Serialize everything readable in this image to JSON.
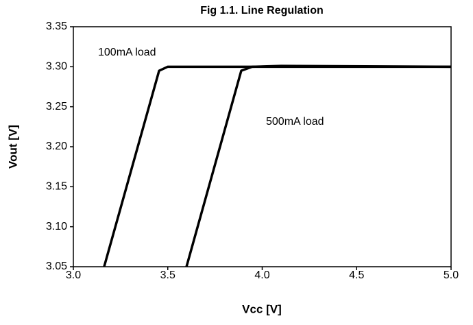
{
  "chart_data": {
    "type": "line",
    "title": "Fig 1.1. Line Regulation",
    "x_label": "Vcc [V]",
    "y_label": "Vout [V]",
    "annotations": [
      "100mA load",
      "500mA load"
    ],
    "series": [
      {
        "name": "100mA load",
        "color": "#000000",
        "x": [
          3.163,
          3.454,
          3.5,
          5.0
        ],
        "values": [
          3.05,
          3.295,
          3.3,
          3.3
        ]
      },
      {
        "name": "500mA load",
        "color": "#000000",
        "x": [
          3.599,
          3.889,
          3.947,
          4.1,
          5.0
        ],
        "values": [
          3.05,
          3.295,
          3.3,
          3.301,
          3.3
        ]
      }
    ],
    "xlim": [
      3.0,
      5.0
    ],
    "xticks": [
      {
        "value": 3.0,
        "label": "3.0"
      },
      3.5,
      {
        "value": 4.0,
        "label": "4.0"
      },
      4.5,
      {
        "value": 5.0,
        "label": "5.0"
      }
    ],
    "ylim": [
      3.05,
      3.35
    ],
    "yticks": [
      3.05,
      {
        "value": 3.1,
        "label": "3.10"
      },
      3.15,
      {
        "value": 3.2,
        "label": "3.20"
      },
      3.25,
      {
        "value": 3.3,
        "label": "3.30"
      },
      3.35
    ],
    "grid": false
  }
}
